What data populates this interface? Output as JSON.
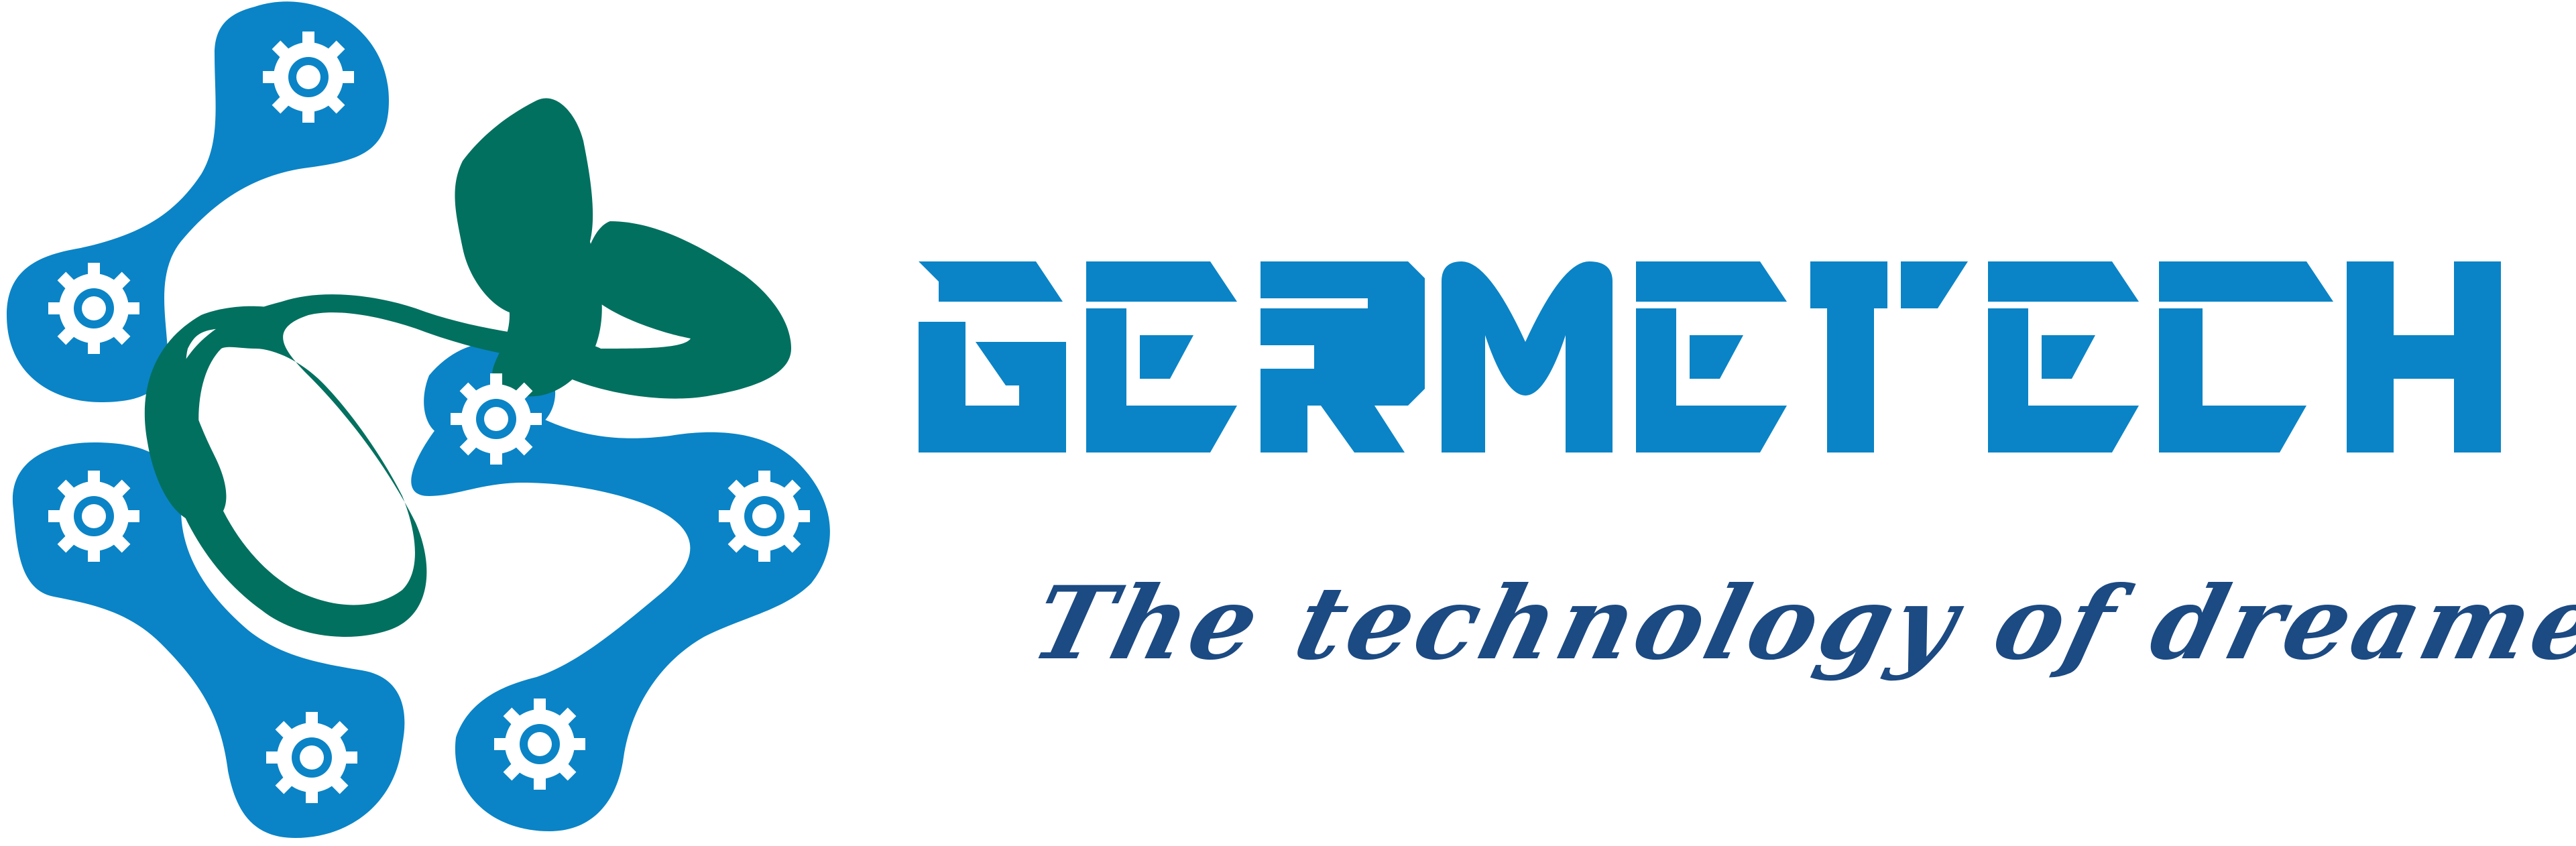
{
  "brand": {
    "name": "GERME TECH",
    "tagline": "The technology of dreamers"
  },
  "colors": {
    "blue": "#0a84c6",
    "green": "#02705f",
    "tagline": "#1c4a82",
    "white": "#ffffff"
  },
  "icons": {
    "emblem": "blue-cross-with-gears-and-green-leaves",
    "gear": "gear-icon"
  }
}
